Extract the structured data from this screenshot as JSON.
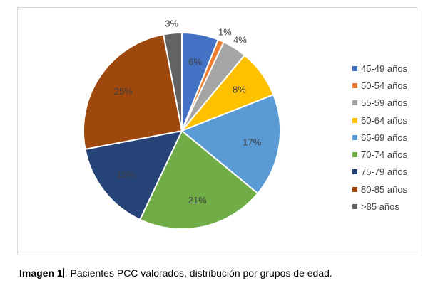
{
  "chart_data": {
    "type": "pie",
    "title": "",
    "legend_position": "right",
    "series": [
      {
        "categories": [
          "45-49 años",
          "50-54 años",
          "55-59 años",
          "60-64 años",
          "65-69 años",
          "70-74 años",
          "75-79 años",
          "80-85 años",
          ">85 años"
        ],
        "values": [
          6,
          1,
          4,
          8,
          17,
          21,
          15,
          25,
          3
        ],
        "labels": [
          "6%",
          "1%",
          "4%",
          "8%",
          "17%",
          "21%",
          "15%",
          "25%",
          "3%"
        ],
        "colors": [
          "#4472c4",
          "#ed7d31",
          "#a5a5a5",
          "#ffc000",
          "#5b9bd5",
          "#70ad47",
          "#264478",
          "#9e480e",
          "#636363"
        ]
      }
    ]
  },
  "caption": {
    "bold": "Imagen 1",
    "text": ". Pacientes PCC valorados, distribución por grupos de edad."
  }
}
